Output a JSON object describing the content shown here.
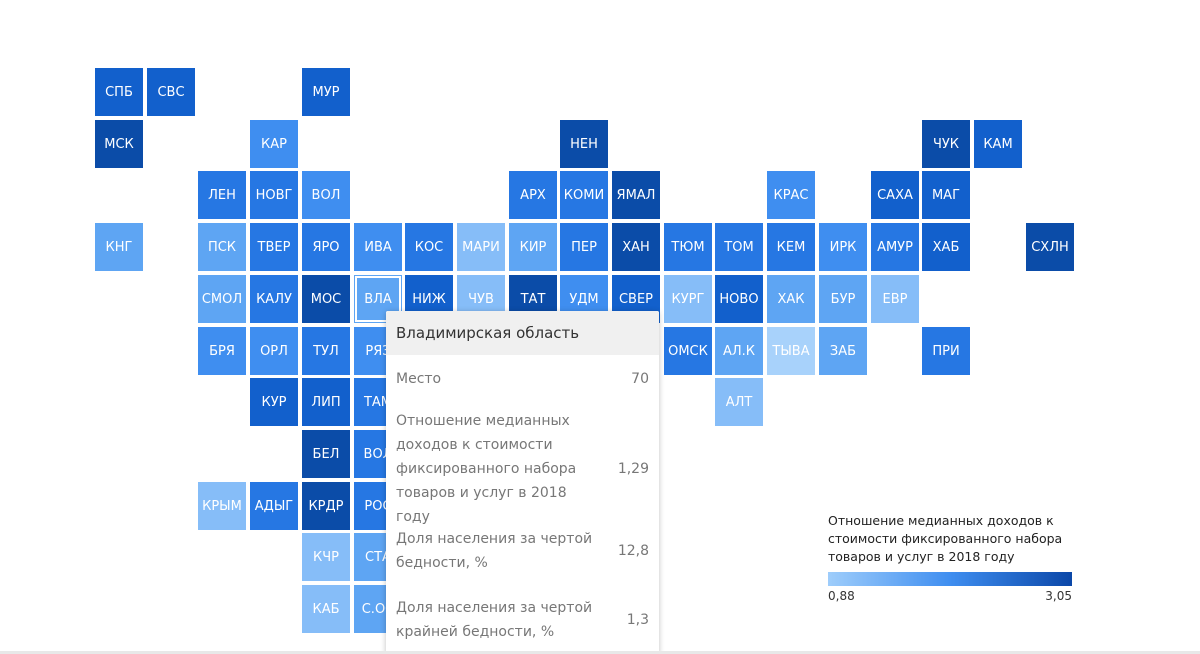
{
  "map": {
    "colors": {
      "c1": "#a8d2fb",
      "c2": "#86bdf8",
      "c3": "#5ea5f3",
      "c4": "#3f8ef0",
      "c5": "#2677e3",
      "c6": "#1260cc",
      "c7": "#0b4ca8"
    },
    "regions": [
      {
        "label": "СПБ",
        "col": 0,
        "row": 0,
        "color": "c6"
      },
      {
        "label": "СВС",
        "col": 1,
        "row": 0,
        "color": "c6"
      },
      {
        "label": "МУР",
        "col": 4,
        "row": 0,
        "color": "c6"
      },
      {
        "label": "МСК",
        "col": 0,
        "row": 1,
        "color": "c7"
      },
      {
        "label": "КАР",
        "col": 3,
        "row": 1,
        "color": "c4"
      },
      {
        "label": "НЕН",
        "col": 9,
        "row": 1,
        "color": "c7"
      },
      {
        "label": "ЧУК",
        "col": 16,
        "row": 1,
        "color": "c7"
      },
      {
        "label": "КАМ",
        "col": 17,
        "row": 1,
        "color": "c6"
      },
      {
        "label": "ЛЕН",
        "col": 2,
        "row": 2,
        "color": "c5"
      },
      {
        "label": "НОВГ",
        "col": 3,
        "row": 2,
        "color": "c5"
      },
      {
        "label": "ВОЛ",
        "col": 4,
        "row": 2,
        "color": "c4"
      },
      {
        "label": "АРХ",
        "col": 8,
        "row": 2,
        "color": "c5"
      },
      {
        "label": "КОМИ",
        "col": 9,
        "row": 2,
        "color": "c5"
      },
      {
        "label": "ЯМАЛ",
        "col": 10,
        "row": 2,
        "color": "c7"
      },
      {
        "label": "КРАС",
        "col": 13,
        "row": 2,
        "color": "c4"
      },
      {
        "label": "САХА",
        "col": 15,
        "row": 2,
        "color": "c6"
      },
      {
        "label": "МАГ",
        "col": 16,
        "row": 2,
        "color": "c6"
      },
      {
        "label": "КНГ",
        "col": 0,
        "row": 3,
        "color": "c3"
      },
      {
        "label": "ПСК",
        "col": 2,
        "row": 3,
        "color": "c3"
      },
      {
        "label": "ТВЕР",
        "col": 3,
        "row": 3,
        "color": "c5"
      },
      {
        "label": "ЯРО",
        "col": 4,
        "row": 3,
        "color": "c5"
      },
      {
        "label": "ИВА",
        "col": 5,
        "row": 3,
        "color": "c4"
      },
      {
        "label": "КОС",
        "col": 6,
        "row": 3,
        "color": "c5"
      },
      {
        "label": "МАРИ",
        "col": 7,
        "row": 3,
        "color": "c2"
      },
      {
        "label": "КИР",
        "col": 8,
        "row": 3,
        "color": "c3"
      },
      {
        "label": "ПЕР",
        "col": 9,
        "row": 3,
        "color": "c5"
      },
      {
        "label": "ХАН",
        "col": 10,
        "row": 3,
        "color": "c7"
      },
      {
        "label": "ТЮМ",
        "col": 11,
        "row": 3,
        "color": "c5"
      },
      {
        "label": "ТОМ",
        "col": 12,
        "row": 3,
        "color": "c5"
      },
      {
        "label": "КЕМ",
        "col": 13,
        "row": 3,
        "color": "c5"
      },
      {
        "label": "ИРК",
        "col": 14,
        "row": 3,
        "color": "c4"
      },
      {
        "label": "АМУР",
        "col": 15,
        "row": 3,
        "color": "c5"
      },
      {
        "label": "ХАБ",
        "col": 16,
        "row": 3,
        "color": "c6"
      },
      {
        "label": "СХЛН",
        "col": 18,
        "row": 3,
        "color": "c7"
      },
      {
        "label": "СМОЛ",
        "col": 2,
        "row": 4,
        "color": "c3"
      },
      {
        "label": "КАЛУ",
        "col": 3,
        "row": 4,
        "color": "c5"
      },
      {
        "label": "МОС",
        "col": 4,
        "row": 4,
        "color": "c7"
      },
      {
        "label": "ВЛА",
        "col": 5,
        "row": 4,
        "color": "c3",
        "hl": true
      },
      {
        "label": "НИЖ",
        "col": 6,
        "row": 4,
        "color": "c6"
      },
      {
        "label": "ЧУВ",
        "col": 7,
        "row": 4,
        "color": "c2"
      },
      {
        "label": "ТАТ",
        "col": 8,
        "row": 4,
        "color": "c7"
      },
      {
        "label": "УДМ",
        "col": 9,
        "row": 4,
        "color": "c4"
      },
      {
        "label": "СВЕР",
        "col": 10,
        "row": 4,
        "color": "c6"
      },
      {
        "label": "КУРГ",
        "col": 11,
        "row": 4,
        "color": "c2"
      },
      {
        "label": "НОВО",
        "col": 12,
        "row": 4,
        "color": "c6"
      },
      {
        "label": "ХАК",
        "col": 13,
        "row": 4,
        "color": "c3"
      },
      {
        "label": "БУР",
        "col": 14,
        "row": 4,
        "color": "c3"
      },
      {
        "label": "ЕВР",
        "col": 15,
        "row": 4,
        "color": "c2"
      },
      {
        "label": "БРЯ",
        "col": 2,
        "row": 5,
        "color": "c4"
      },
      {
        "label": "ОРЛ",
        "col": 3,
        "row": 5,
        "color": "c4"
      },
      {
        "label": "ТУЛ",
        "col": 4,
        "row": 5,
        "color": "c5"
      },
      {
        "label": "РЯЗ",
        "col": 5,
        "row": 5,
        "color": "c4"
      },
      {
        "label": "ОМСК",
        "col": 11,
        "row": 5,
        "color": "c5"
      },
      {
        "label": "АЛ.К",
        "col": 12,
        "row": 5,
        "color": "c3"
      },
      {
        "label": "ТЫВА",
        "col": 13,
        "row": 5,
        "color": "c1"
      },
      {
        "label": "ЗАБ",
        "col": 14,
        "row": 5,
        "color": "c3"
      },
      {
        "label": "ПРИ",
        "col": 16,
        "row": 5,
        "color": "c5"
      },
      {
        "label": "КУР",
        "col": 3,
        "row": 6,
        "color": "c6"
      },
      {
        "label": "ЛИП",
        "col": 4,
        "row": 6,
        "color": "c6"
      },
      {
        "label": "ТАМ",
        "col": 5,
        "row": 6,
        "color": "c5"
      },
      {
        "label": "АЛТ",
        "col": 12,
        "row": 6,
        "color": "c2"
      },
      {
        "label": "БЕЛ",
        "col": 4,
        "row": 7,
        "color": "c7"
      },
      {
        "label": "ВОЛ",
        "col": 5,
        "row": 7,
        "color": "c5"
      },
      {
        "label": "КРЫМ",
        "col": 2,
        "row": 8,
        "color": "c2"
      },
      {
        "label": "АДЫГ",
        "col": 3,
        "row": 8,
        "color": "c5"
      },
      {
        "label": "КРДР",
        "col": 4,
        "row": 8,
        "color": "c7"
      },
      {
        "label": "РОС",
        "col": 5,
        "row": 8,
        "color": "c5"
      },
      {
        "label": "КЧР",
        "col": 4,
        "row": 9,
        "color": "c2"
      },
      {
        "label": "СТА",
        "col": 5,
        "row": 9,
        "color": "c3"
      },
      {
        "label": "КАБ",
        "col": 4,
        "row": 10,
        "color": "c2"
      },
      {
        "label": "С.ОС",
        "col": 5,
        "row": 10,
        "color": "c3"
      }
    ]
  },
  "tooltip": {
    "title": "Владимирская область",
    "rows": [
      {
        "label": "Место",
        "value": "70"
      },
      {
        "label": "Отношение медианных доходов к стоимости фиксированного набора товаров и услуг в 2018 году",
        "value": "1,29"
      },
      {
        "label": "Доля населения за чертой бедности, %",
        "value": "12,8"
      },
      {
        "label": "Доля населения за чертой крайней бедности, %",
        "value": "1,3"
      }
    ]
  },
  "legend": {
    "title": "Отношение медианных доходов к стоимости фиксированного набора товаров и услуг в 2018 году",
    "min": "0,88",
    "max": "3,05",
    "color_min": "#9ecdfb",
    "color_max": "#0b47a8"
  }
}
